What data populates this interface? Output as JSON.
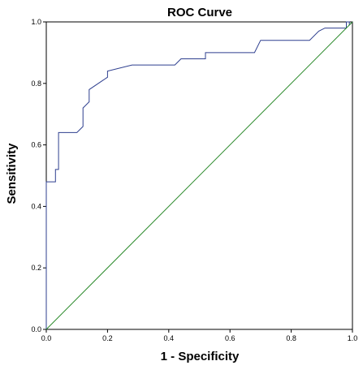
{
  "chart_data": {
    "type": "line",
    "title": "ROC Curve",
    "xlabel": "1 - Specificity",
    "ylabel": "Sensitivity",
    "xlim": [
      0,
      1
    ],
    "ylim": [
      0,
      1
    ],
    "x_ticks": [
      "0.0",
      "0.2",
      "0.4",
      "0.6",
      "0.8",
      "1.0"
    ],
    "y_ticks": [
      "0.0",
      "0.2",
      "0.4",
      "0.6",
      "0.8",
      "1.0"
    ],
    "grid": false,
    "series": [
      {
        "role": "roc",
        "color": "#2e3f8f",
        "x": [
          0.0,
          0.0,
          0.03,
          0.03,
          0.04,
          0.04,
          0.1,
          0.12,
          0.12,
          0.14,
          0.14,
          0.2,
          0.2,
          0.28,
          0.42,
          0.44,
          0.52,
          0.52,
          0.68,
          0.7,
          0.86,
          0.89,
          0.91,
          0.98,
          0.98,
          0.99,
          0.99,
          1.0
        ],
        "y": [
          0.0,
          0.48,
          0.48,
          0.52,
          0.52,
          0.64,
          0.64,
          0.66,
          0.72,
          0.74,
          0.78,
          0.82,
          0.84,
          0.86,
          0.86,
          0.88,
          0.88,
          0.9,
          0.9,
          0.94,
          0.94,
          0.97,
          0.98,
          0.98,
          1.0,
          1.0,
          0.99,
          1.0
        ]
      },
      {
        "role": "reference",
        "color": "#2b8a2b",
        "x": [
          0.0,
          1.0
        ],
        "y": [
          0.0,
          1.0
        ]
      }
    ]
  }
}
